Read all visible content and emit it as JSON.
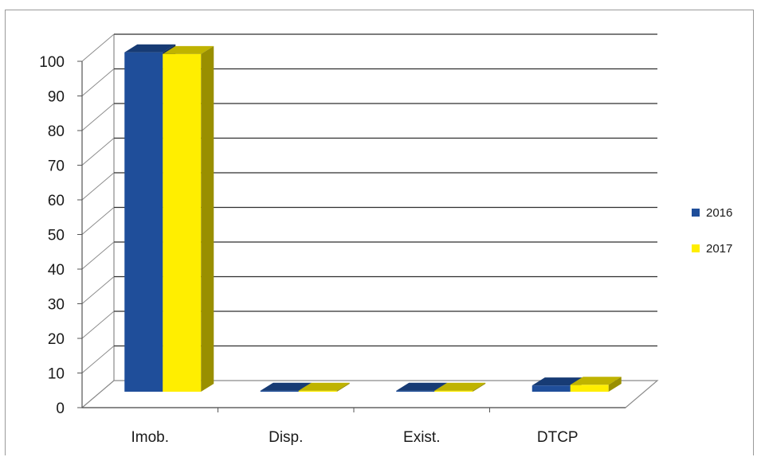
{
  "chart_data": {
    "type": "bar",
    "categories": [
      "Imob.",
      "Disp.",
      "Exist.",
      "DTCP"
    ],
    "series": [
      {
        "name": "2016",
        "values": [
          98,
          0.3,
          0.3,
          1.8
        ],
        "color": "#1f4e9a"
      },
      {
        "name": "2017",
        "values": [
          97.5,
          0.3,
          0.3,
          2.0
        ],
        "color": "#ffee00"
      }
    ],
    "yticks": [
      0,
      10,
      20,
      30,
      40,
      50,
      60,
      70,
      80,
      90,
      100
    ],
    "ylim": [
      0,
      100
    ],
    "grid": true,
    "legend_position": "right",
    "style": "3d-clustered"
  }
}
